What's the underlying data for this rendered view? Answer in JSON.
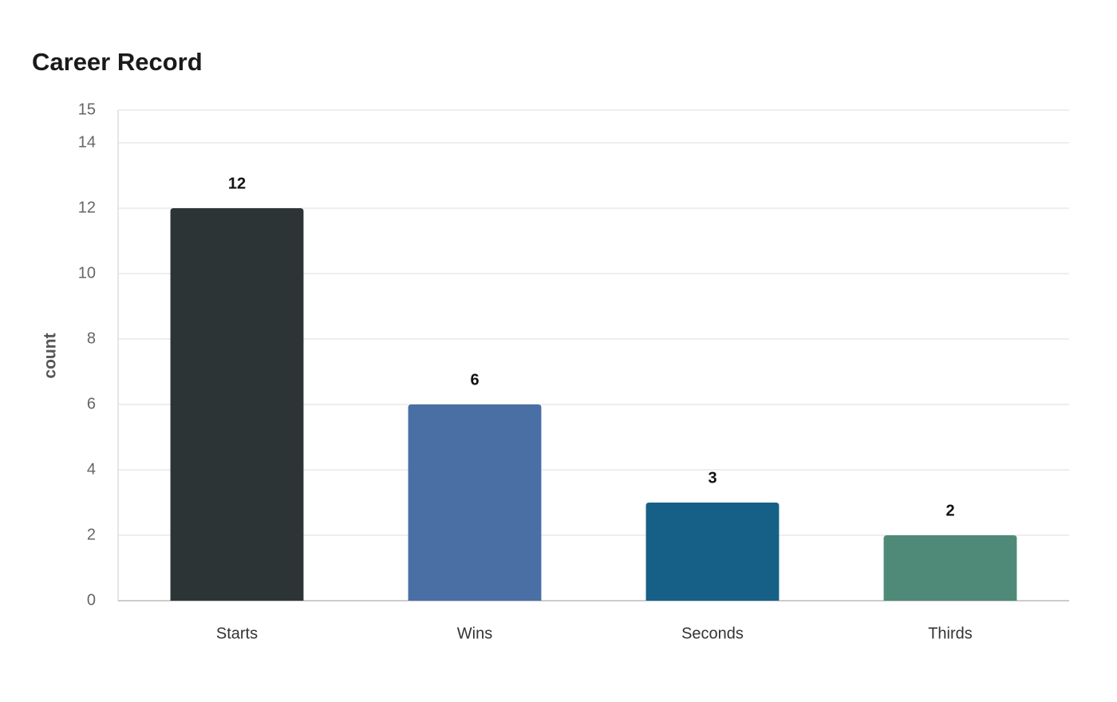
{
  "chart_data": {
    "type": "bar",
    "title": "Career Record",
    "y_label": "count",
    "categories": [
      "Starts",
      "Wins",
      "Seconds",
      "Thirds"
    ],
    "values": [
      12,
      6,
      3,
      2
    ],
    "colors": [
      "#2d3436",
      "#4a6fa5",
      "#166088",
      "#4f8a78"
    ],
    "ylim": [
      0,
      15
    ],
    "yticks": [
      0,
      2,
      4,
      6,
      8,
      10,
      12,
      14,
      15
    ],
    "grid": true
  }
}
